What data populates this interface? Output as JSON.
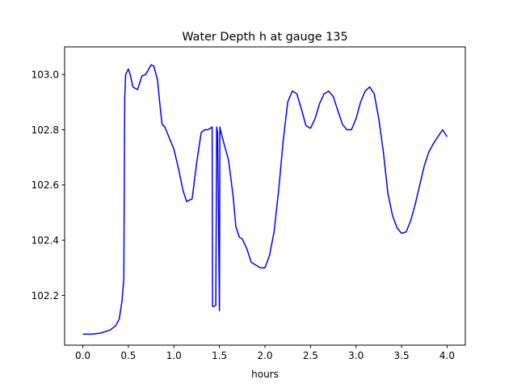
{
  "chart_data": {
    "type": "line",
    "title": "Water Depth h at gauge 135",
    "xlabel": "hours",
    "ylabel": "",
    "xlim": [
      -0.2,
      4.2
    ],
    "ylim": [
      102.02,
      103.1
    ],
    "xticks": [
      0.0,
      0.5,
      1.0,
      1.5,
      2.0,
      2.5,
      3.0,
      3.5,
      4.0
    ],
    "xtick_labels": [
      "0.0",
      "0.5",
      "1.0",
      "1.5",
      "2.0",
      "2.5",
      "3.0",
      "3.5",
      "4.0"
    ],
    "yticks": [
      102.2,
      102.4,
      102.6,
      102.8,
      103.0
    ],
    "ytick_labels": [
      "102.2",
      "102.4",
      "102.6",
      "102.8",
      "103.0"
    ],
    "grid": false,
    "series": [
      {
        "color": "#0000ff",
        "x": [
          0.0,
          0.1,
          0.2,
          0.3,
          0.36,
          0.4,
          0.43,
          0.45,
          0.46,
          0.462,
          0.47,
          0.5,
          0.52,
          0.55,
          0.6,
          0.65,
          0.69,
          0.75,
          0.78,
          0.82,
          0.85,
          0.87,
          0.9,
          0.95,
          1.0,
          1.05,
          1.1,
          1.14,
          1.2,
          1.25,
          1.3,
          1.34,
          1.37,
          1.4,
          1.42,
          1.425,
          1.44,
          1.46,
          1.47,
          1.48,
          1.5,
          1.505,
          1.51,
          1.55,
          1.6,
          1.65,
          1.68,
          1.72,
          1.75,
          1.8,
          1.85,
          1.9,
          1.95,
          2.0,
          2.05,
          2.1,
          2.15,
          2.2,
          2.25,
          2.3,
          2.35,
          2.4,
          2.45,
          2.5,
          2.55,
          2.6,
          2.65,
          2.7,
          2.75,
          2.8,
          2.85,
          2.9,
          2.95,
          3.0,
          3.05,
          3.1,
          3.15,
          3.2,
          3.25,
          3.3,
          3.35,
          3.4,
          3.45,
          3.5,
          3.55,
          3.6,
          3.65,
          3.7,
          3.75,
          3.8,
          3.85,
          3.9,
          3.95,
          4.0
        ],
        "y": [
          102.06,
          102.06,
          102.064,
          102.075,
          102.09,
          102.115,
          102.18,
          102.26,
          102.92,
          102.93,
          103.0,
          103.02,
          103.0,
          102.955,
          102.945,
          102.995,
          103.0,
          103.035,
          103.03,
          102.98,
          102.88,
          102.82,
          102.81,
          102.77,
          102.73,
          102.66,
          102.58,
          102.54,
          102.55,
          102.68,
          102.79,
          102.8,
          102.8,
          102.805,
          102.81,
          102.16,
          102.16,
          102.165,
          102.81,
          102.79,
          102.145,
          102.81,
          102.8,
          102.75,
          102.69,
          102.56,
          102.45,
          102.41,
          102.405,
          102.37,
          102.32,
          102.31,
          102.3,
          102.3,
          102.345,
          102.43,
          102.58,
          102.76,
          102.9,
          102.94,
          102.93,
          102.875,
          102.815,
          102.805,
          102.84,
          102.895,
          102.93,
          102.94,
          102.92,
          102.87,
          102.82,
          102.8,
          102.8,
          102.84,
          102.9,
          102.94,
          102.955,
          102.93,
          102.84,
          102.72,
          102.57,
          102.49,
          102.445,
          102.425,
          102.43,
          102.47,
          102.53,
          102.6,
          102.67,
          102.72,
          102.75,
          102.775,
          102.8,
          102.775
        ]
      }
    ]
  }
}
